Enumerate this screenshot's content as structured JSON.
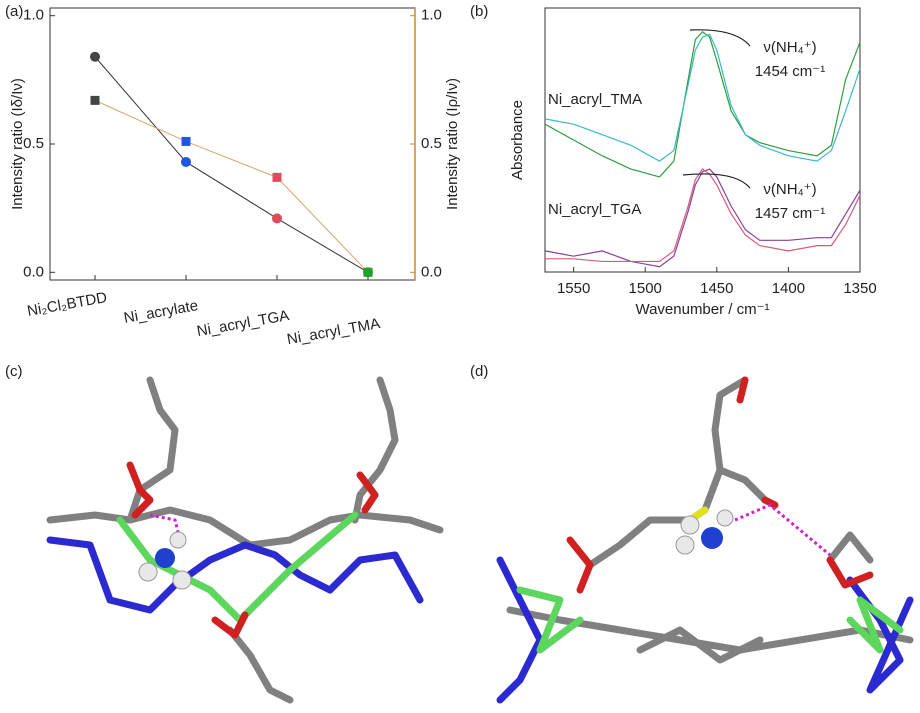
{
  "panel_labels": [
    "(a)",
    "(b)",
    "(c)",
    "(d)"
  ],
  "chart_data": [
    {
      "type": "line",
      "xlabel": null,
      "ylabel": "Intensity ratio (Iδ/Iν)",
      "y2label": "Intensity ratio (Iρ/Iν)",
      "categories": [
        "Ni₂Cl₂BTDD",
        "Ni_acrylate",
        "Ni_acryl_TGA",
        "Ni_acryl_TMA"
      ],
      "series": [
        {
          "color": "#333333",
          "marker": "circle",
          "marker_colors": [
            "#444444",
            "#2255dd",
            "#e04a5a",
            "#22a02a"
          ],
          "values": [
            0.84,
            0.43,
            0.21,
            0.0
          ]
        },
        {
          "color": "#d9a56e",
          "marker": "square",
          "axis": "y2",
          "marker_colors": [
            "#444444",
            "#2255dd",
            "#e04a5a",
            "#22a02a"
          ],
          "values": [
            0.67,
            0.51,
            0.37,
            0.0
          ]
        }
      ],
      "ylim": [
        -0.03,
        1.03
      ],
      "yticks": [
        {
          "value": 0,
          "label": "0.0"
        },
        0.5,
        {
          "value": 1,
          "label": "1.0"
        }
      ],
      "y2lim": [
        -0.03,
        1.03
      ],
      "y2ticks": [
        {
          "value": 0,
          "label": "0.0"
        },
        0.5,
        {
          "value": 1,
          "label": "1.0"
        }
      ],
      "y2color": "#d4862b"
    },
    {
      "type": "spectrum",
      "xlabel": "Wavenumber / cm⁻¹",
      "ylabel": "Absorbance",
      "x": [
        1570,
        1550,
        1530,
        1510,
        1490,
        1480,
        1470,
        1465,
        1460,
        1455,
        1450,
        1440,
        1430,
        1420,
        1400,
        1380,
        1370,
        1360,
        1350
      ],
      "series": [
        {
          "color": "#2e9e3e",
          "values": [
            0.56,
            0.5,
            0.44,
            0.39,
            0.36,
            0.42,
            0.73,
            0.88,
            0.91,
            0.89,
            0.8,
            0.61,
            0.52,
            0.49,
            0.46,
            0.44,
            0.48,
            0.73,
            0.87
          ]
        },
        {
          "color": "#3cb8c8",
          "values": [
            0.58,
            0.56,
            0.52,
            0.48,
            0.42,
            0.46,
            0.71,
            0.84,
            0.89,
            0.9,
            0.84,
            0.63,
            0.52,
            0.48,
            0.44,
            0.42,
            0.46,
            0.61,
            0.77
          ]
        },
        {
          "color": "#8a3f9a",
          "values": [
            0.08,
            0.06,
            0.08,
            0.04,
            0.02,
            0.06,
            0.23,
            0.33,
            0.38,
            0.39,
            0.36,
            0.25,
            0.16,
            0.12,
            0.12,
            0.13,
            0.13,
            0.22,
            0.31
          ]
        },
        {
          "color": "#d95a78",
          "values": [
            0.05,
            0.05,
            0.04,
            0.04,
            0.04,
            0.08,
            0.25,
            0.35,
            0.39,
            0.37,
            0.33,
            0.22,
            0.14,
            0.1,
            0.08,
            0.1,
            0.1,
            0.18,
            0.29
          ]
        }
      ],
      "labels": [
        {
          "text": "Ni_acryl_TMA",
          "color": "#2e9e3e"
        },
        {
          "text": "Ni_acryl_TGA",
          "color": "#d95a78"
        }
      ],
      "annotations": [
        {
          "lines": [
            "ν(NH₄⁺)",
            "1454 cm⁻¹"
          ]
        },
        {
          "lines": [
            "ν(NH₄⁺)",
            "1457 cm⁻¹"
          ]
        }
      ],
      "xlim": [
        1570,
        1350
      ],
      "xticks": [
        1550,
        1500,
        1450,
        1400,
        1350
      ],
      "ylim": [
        0,
        1
      ]
    }
  ]
}
